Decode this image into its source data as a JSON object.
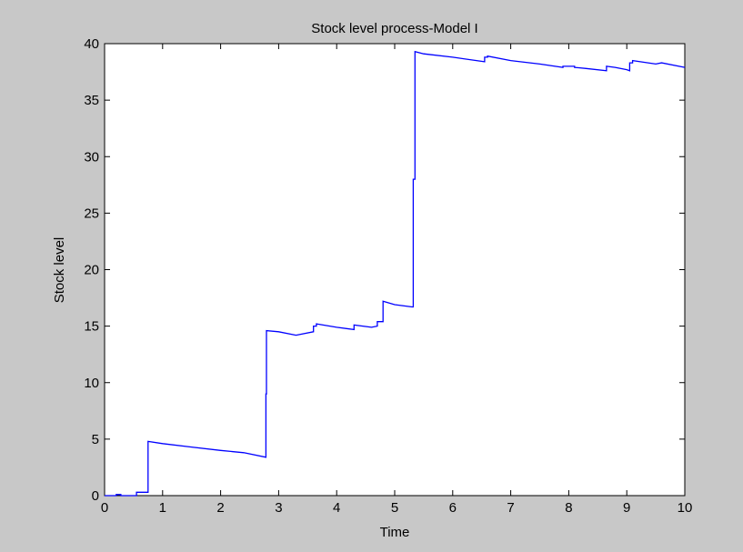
{
  "chart_data": {
    "type": "line",
    "title": "Stock level process-Model I",
    "xlabel": "Time",
    "ylabel": "Stock level",
    "xlim": [
      0,
      10
    ],
    "ylim": [
      0,
      40
    ],
    "xticks": [
      0,
      1,
      2,
      3,
      4,
      5,
      6,
      7,
      8,
      9,
      10
    ],
    "yticks": [
      0,
      5,
      10,
      15,
      20,
      25,
      30,
      35,
      40
    ],
    "grid": false,
    "background_color": "#c8c8c8",
    "plot_area_color": "#ffffff",
    "line_color": "#0000ff",
    "series": [
      {
        "x": [
          0,
          0.2,
          0.2,
          0.28,
          0.28,
          0.55,
          0.55,
          0.75,
          0.75,
          1.0,
          1.5,
          2.0,
          2.4,
          2.78,
          2.78,
          2.79,
          2.79,
          3.0,
          3.3,
          3.6,
          3.6,
          3.65,
          3.65,
          4.0,
          4.3,
          4.3,
          4.6,
          4.7,
          4.7,
          4.8,
          4.8,
          5.0,
          5.3,
          5.32,
          5.32,
          5.35,
          5.35,
          5.5,
          6.0,
          6.55,
          6.55,
          6.6,
          6.6,
          7.0,
          7.5,
          7.9,
          7.9,
          8.1,
          8.1,
          8.3,
          8.65,
          8.65,
          8.8,
          8.8,
          9.0,
          9.05,
          9.05,
          9.1,
          9.1,
          9.5,
          9.6,
          10.0
        ],
        "y": [
          0,
          0,
          0.1,
          0.1,
          0,
          0,
          0.3,
          0.3,
          4.8,
          4.6,
          4.3,
          4.0,
          3.8,
          3.4,
          9.0,
          9.0,
          14.6,
          14.5,
          14.2,
          14.5,
          15.0,
          15.0,
          15.2,
          14.9,
          14.7,
          15.1,
          14.9,
          15.0,
          15.4,
          15.4,
          17.2,
          16.9,
          16.7,
          16.7,
          28.0,
          28.0,
          39.3,
          39.1,
          38.8,
          38.4,
          38.8,
          38.8,
          38.9,
          38.5,
          38.2,
          37.9,
          38.0,
          38.0,
          37.9,
          37.8,
          37.6,
          38.0,
          37.9,
          37.9,
          37.7,
          37.6,
          38.3,
          38.3,
          38.5,
          38.2,
          38.3,
          37.9
        ]
      }
    ]
  }
}
